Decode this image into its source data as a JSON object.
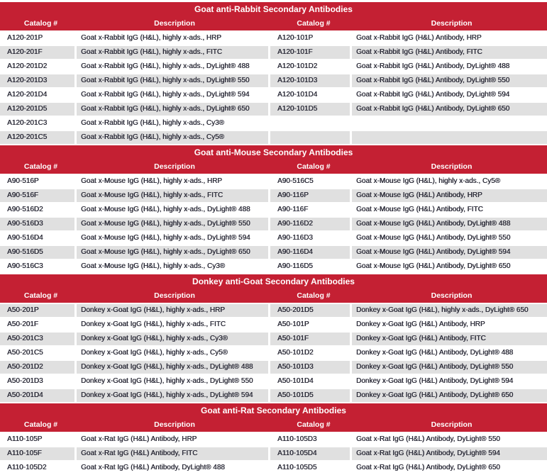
{
  "colors": {
    "accent_red": "#c42033",
    "row_alt_gray": "#e0e0e0",
    "text_ink": "#2b2b38",
    "header_text": "#ffffff"
  },
  "columns": [
    "Catalog #",
    "Description",
    "Catalog #",
    "Description"
  ],
  "sections": [
    {
      "title": "Goat anti-Rabbit Secondary Antibodies",
      "rows": [
        [
          "A120-201P",
          "Goat x-Rabbit IgG (H&L), highly x-ads., HRP",
          "A120-101P",
          "Goat x-Rabbit IgG (H&L) Antibody, HRP"
        ],
        [
          "A120-201F",
          "Goat x-Rabbit IgG (H&L), highly x-ads., FITC",
          "A120-101F",
          "Goat x-Rabbit IgG (H&L) Antibody, FITC"
        ],
        [
          "A120-201D2",
          "Goat x-Rabbit IgG (H&L), highly x-ads., DyLight® 488",
          "A120-101D2",
          "Goat x-Rabbit IgG (H&L) Antibody, DyLight® 488"
        ],
        [
          "A120-201D3",
          "Goat x-Rabbit IgG (H&L), highly x-ads., DyLight® 550",
          "A120-101D3",
          "Goat x-Rabbit IgG (H&L) Antibody, DyLight® 550"
        ],
        [
          "A120-201D4",
          "Goat x-Rabbit IgG (H&L), highly x-ads., DyLight® 594",
          "A120-101D4",
          "Goat x-Rabbit IgG (H&L) Antibody, DyLight® 594"
        ],
        [
          "A120-201D5",
          "Goat x-Rabbit IgG (H&L), highly x-ads., DyLight® 650",
          "A120-101D5",
          "Goat x-Rabbit IgG (H&L) Antibody, DyLight® 650"
        ],
        [
          "A120-201C3",
          "Goat x-Rabbit IgG (H&L), highly x-ads., Cy3®",
          "",
          ""
        ],
        [
          "A120-201C5",
          "Goat x-Rabbit IgG (H&L), highly x-ads., Cy5®",
          "",
          ""
        ]
      ]
    },
    {
      "title": "Goat anti-Mouse Secondary Antibodies",
      "rows": [
        [
          "A90-516P",
          "Goat x-Mouse IgG (H&L), highly x-ads., HRP",
          "A90-516C5",
          "Goat x-Mouse IgG (H&L), highly x-ads., Cy5®"
        ],
        [
          "A90-516F",
          "Goat x-Mouse IgG (H&L), highly x-ads., FITC",
          "A90-116P",
          "Goat x-Mouse IgG (H&L) Antibody, HRP"
        ],
        [
          "A90-516D2",
          "Goat x-Mouse IgG (H&L), highly x-ads., DyLight® 488",
          "A90-116F",
          "Goat x-Mouse IgG (H&L) Antibody, FITC"
        ],
        [
          "A90-516D3",
          "Goat x-Mouse IgG (H&L), highly x-ads., DyLight® 550",
          "A90-116D2",
          "Goat x-Mouse IgG (H&L) Antibody, DyLight® 488"
        ],
        [
          "A90-516D4",
          "Goat x-Mouse IgG (H&L), highly x-ads., DyLight® 594",
          "A90-116D3",
          "Goat x-Mouse IgG (H&L) Antibody, DyLight® 550"
        ],
        [
          "A90-516D5",
          "Goat x-Mouse IgG (H&L), highly x-ads., DyLight® 650",
          "A90-116D4",
          "Goat x-Mouse IgG (H&L) Antibody, DyLight® 594"
        ],
        [
          "A90-516C3",
          "Goat x-Mouse IgG (H&L), highly x-ads., Cy3®",
          "A90-116D5",
          "Goat x-Mouse IgG (H&L) Antibody, DyLight® 650"
        ]
      ]
    },
    {
      "title": "Donkey anti-Goat Secondary Antibodies",
      "rows": [
        [
          "A50-201P",
          "Donkey x-Goat IgG (H&L), highly x-ads., HRP",
          "A50-201D5",
          "Donkey x-Goat IgG (H&L), highly x-ads., DyLight® 650"
        ],
        [
          "A50-201F",
          "Donkey x-Goat IgG (H&L), highly x-ads., FITC",
          "A50-101P",
          "Donkey x-Goat IgG (H&L) Antibody, HRP"
        ],
        [
          "A50-201C3",
          "Donkey x-Goat IgG (H&L), highly x-ads., Cy3®",
          "A50-101F",
          "Donkey x-Goat IgG (H&L) Antibody, FITC"
        ],
        [
          "A50-201C5",
          "Donkey x-Goat IgG (H&L), highly x-ads., Cy5®",
          "A50-101D2",
          "Donkey x-Goat IgG (H&L) Antibody, DyLight® 488"
        ],
        [
          "A50-201D2",
          "Donkey x-Goat IgG (H&L), highly x-ads., DyLight® 488",
          "A50-101D3",
          "Donkey x-Goat IgG (H&L) Antibody, DyLight® 550"
        ],
        [
          "A50-201D3",
          "Donkey x-Goat IgG (H&L), highly x-ads., DyLight® 550",
          "A50-101D4",
          "Donkey x-Goat IgG (H&L) Antibody, DyLight® 594"
        ],
        [
          "A50-201D4",
          "Donkey x-Goat IgG (H&L), highly x-ads., DyLight® 594",
          "A50-101D5",
          "Donkey x-Goat IgG (H&L) Antibody, DyLight® 650"
        ]
      ]
    },
    {
      "title": "Goat anti-Rat Secondary Antibodies",
      "rows": [
        [
          "A110-105P",
          "Goat x-Rat IgG (H&L) Antibody, HRP",
          "A110-105D3",
          "Goat x-Rat IgG (H&L) Antibody, DyLight® 550"
        ],
        [
          "A110-105F",
          "Goat x-Rat IgG (H&L) Antibody, FITC",
          "A110-105D4",
          "Goat x-Rat IgG (H&L) Antibody, DyLight® 594"
        ],
        [
          "A110-105D2",
          "Goat x-Rat IgG (H&L) Antibody, DyLight® 488",
          "A110-105D5",
          "Goat x-Rat IgG (H&L) Antibody, DyLight® 650"
        ]
      ]
    }
  ]
}
